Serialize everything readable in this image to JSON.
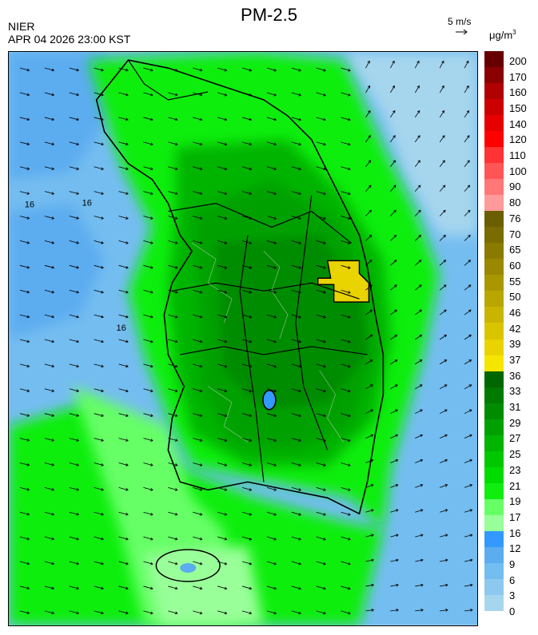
{
  "header": {
    "title": "PM-2.5",
    "agency": "NIER",
    "timestamp": "APR 04 2026 23:00 KST",
    "wind_scale_label": "5 m/s",
    "unit_base": "μg/m",
    "unit_exp": "3"
  },
  "legend": {
    "labels": [
      "200",
      "170",
      "160",
      "150",
      "140",
      "120",
      "110",
      "100",
      "90",
      "80",
      "76",
      "70",
      "65",
      "60",
      "55",
      "50",
      "46",
      "42",
      "39",
      "37",
      "36",
      "33",
      "31",
      "29",
      "27",
      "25",
      "23",
      "21",
      "19",
      "17",
      "16",
      "12",
      "9",
      "6",
      "3",
      "0"
    ],
    "colors": [
      "#660000",
      "#8b0000",
      "#b00000",
      "#cc0000",
      "#e60000",
      "#ff0000",
      "#ff3333",
      "#ff5555",
      "#ff7777",
      "#ff9a9a",
      "#6b5e00",
      "#7a6c00",
      "#8a7a00",
      "#998800",
      "#a99700",
      "#b9a600",
      "#c9b500",
      "#d9c400",
      "#e9d300",
      "#f5e600",
      "#006600",
      "#007a00",
      "#008c00",
      "#00a000",
      "#00b400",
      "#00c800",
      "#00dc00",
      "#10ee10",
      "#66ff66",
      "#99ff99",
      "#3399ff",
      "#5cacf0",
      "#74bdf0",
      "#8dc9ee",
      "#a6d6ee"
    ]
  },
  "map": {
    "city_labels": [
      "16",
      "16",
      "16"
    ]
  }
}
